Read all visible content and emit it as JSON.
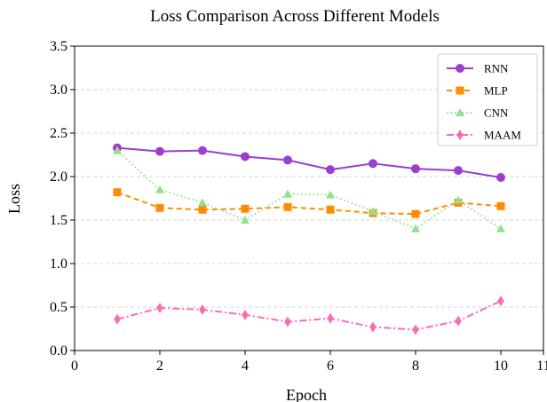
{
  "chart_data": {
    "type": "line",
    "title": "Loss Comparison Across Different Models",
    "xlabel": "Epoch",
    "ylabel": "Loss",
    "xlim": [
      0,
      11
    ],
    "ylim": [
      0,
      3.5
    ],
    "x_ticks": [
      0,
      2,
      4,
      6,
      8,
      10,
      11
    ],
    "y_ticks": [
      0.0,
      0.5,
      1.0,
      1.5,
      2.0,
      2.5,
      3.0,
      3.5
    ],
    "grid": "horizontal dashed",
    "legend_position": "top-right",
    "x": [
      1,
      2,
      3,
      4,
      5,
      6,
      7,
      8,
      9,
      10
    ],
    "series": [
      {
        "name": "RNN",
        "color": "#9b3fce",
        "line_style": "solid",
        "marker": "circle",
        "values": [
          2.33,
          2.29,
          2.3,
          2.23,
          2.19,
          2.08,
          2.15,
          2.09,
          2.07,
          1.99
        ]
      },
      {
        "name": "MLP",
        "color": "#ff8c00",
        "line_style": "dashed",
        "marker": "square",
        "values": [
          1.82,
          1.64,
          1.62,
          1.63,
          1.65,
          1.62,
          1.58,
          1.57,
          1.7,
          1.66
        ]
      },
      {
        "name": "CNN",
        "color": "#90e090",
        "line_style": "dotted",
        "marker": "triangle",
        "values": [
          2.3,
          1.85,
          1.7,
          1.5,
          1.8,
          1.79,
          1.6,
          1.4,
          1.73,
          1.4
        ]
      },
      {
        "name": "MAAM",
        "color": "#ff69b4",
        "line_style": "dashdot",
        "marker": "diamond",
        "values": [
          0.36,
          0.49,
          0.47,
          0.41,
          0.33,
          0.37,
          0.27,
          0.24,
          0.34,
          0.57
        ]
      }
    ]
  }
}
